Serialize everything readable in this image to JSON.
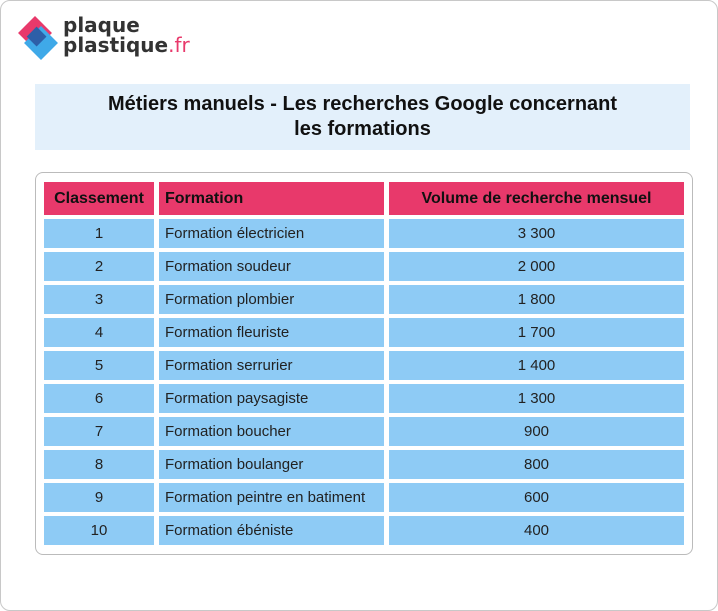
{
  "logo": {
    "line1": "plaque",
    "line2": "plastique",
    "suffix": ".fr"
  },
  "title": {
    "line1": "Métiers manuels - Les recherches Google concernant",
    "line2": "les formations"
  },
  "table": {
    "header": [
      "Classement",
      "Formation",
      "Volume de recherche mensuel"
    ],
    "rows": [
      [
        "1",
        "Formation électricien",
        "3 300"
      ],
      [
        "2",
        "Formation soudeur",
        "2 000"
      ],
      [
        "3",
        "Formation plombier",
        "1 800"
      ],
      [
        "4",
        "Formation fleuriste",
        "1 700"
      ],
      [
        "5",
        "Formation serrurier",
        "1 400"
      ],
      [
        "6",
        "Formation paysagiste",
        "1 300"
      ],
      [
        "7",
        "Formation boucher",
        "900"
      ],
      [
        "8",
        "Formation boulanger",
        "800"
      ],
      [
        "9",
        "Formation peintre en batiment",
        "600"
      ],
      [
        "10",
        "Formation ébéniste",
        "400"
      ]
    ]
  }
}
